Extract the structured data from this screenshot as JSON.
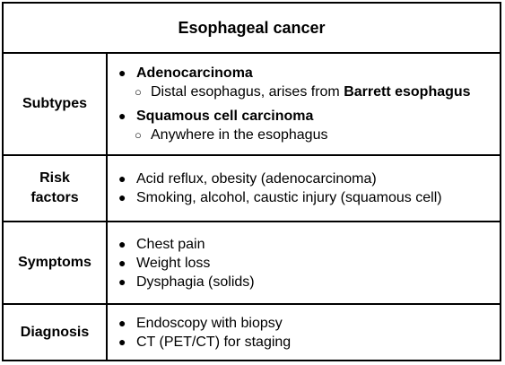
{
  "title": "Esophageal cancer",
  "rows": {
    "subtypes": {
      "label": "Subtypes",
      "adeno_heading": "Adenocarcinoma",
      "adeno_detail_text": "Distal esophagus, arises from ",
      "adeno_detail_bold": "Barrett esophagus",
      "squamous_heading": "Squamous cell carcinoma",
      "squamous_detail": "Anywhere in the esophagus"
    },
    "risk_factors": {
      "label_line1": "Risk",
      "label_line2": "factors",
      "items": [
        "Acid reflux, obesity (adenocarcinoma)",
        "Smoking, alcohol, caustic injury (squamous cell)"
      ]
    },
    "symptoms": {
      "label": "Symptoms",
      "items": [
        "Chest pain",
        "Weight loss",
        "Dysphagia (solids)"
      ]
    },
    "diagnosis": {
      "label": "Diagnosis",
      "items": [
        "Endoscopy with biopsy",
        "CT (PET/CT) for staging"
      ]
    }
  },
  "glyphs": {
    "bullet": "●",
    "sub_bullet": "○"
  }
}
